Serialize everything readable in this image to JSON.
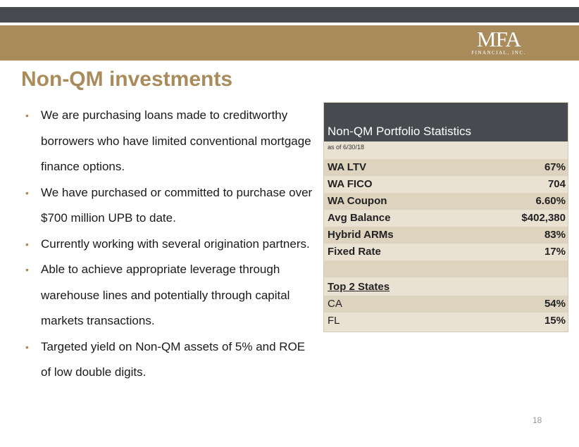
{
  "header": {
    "logo_main": "MFA",
    "logo_sub": "FINANCIAL, INC.",
    "accent_color": "#a98b5c",
    "dark_color": "#474a4f"
  },
  "title": "Non-QM investments",
  "bullets": [
    "We are purchasing loans made to creditworthy borrowers who have limited conventional mortgage finance options.",
    "We have purchased or committed to purchase over $700 million UPB to date.",
    "Currently working with several origination partners.",
    "Able to achieve appropriate leverage through warehouse lines and potentially through capital markets transactions.",
    "Targeted yield on Non-QM assets of 5% and ROE of low double digits."
  ],
  "stats": {
    "title": "Non-QM Portfolio Statistics",
    "as_of": "as of 6/30/18",
    "rows": [
      {
        "label": "WA LTV",
        "value": "67%"
      },
      {
        "label": "WA FICO",
        "value": "704"
      },
      {
        "label": "WA Coupon",
        "value": "6.60%"
      },
      {
        "label": "Avg Balance",
        "value": "$402,380"
      },
      {
        "label": "Hybrid ARMs",
        "value": "83%"
      },
      {
        "label": "Fixed Rate",
        "value": "17%"
      }
    ],
    "states_heading": "Top 2 States",
    "states": [
      {
        "label": "CA",
        "value": "54%"
      },
      {
        "label": "FL",
        "value": "15%"
      }
    ]
  },
  "page_number": "18"
}
